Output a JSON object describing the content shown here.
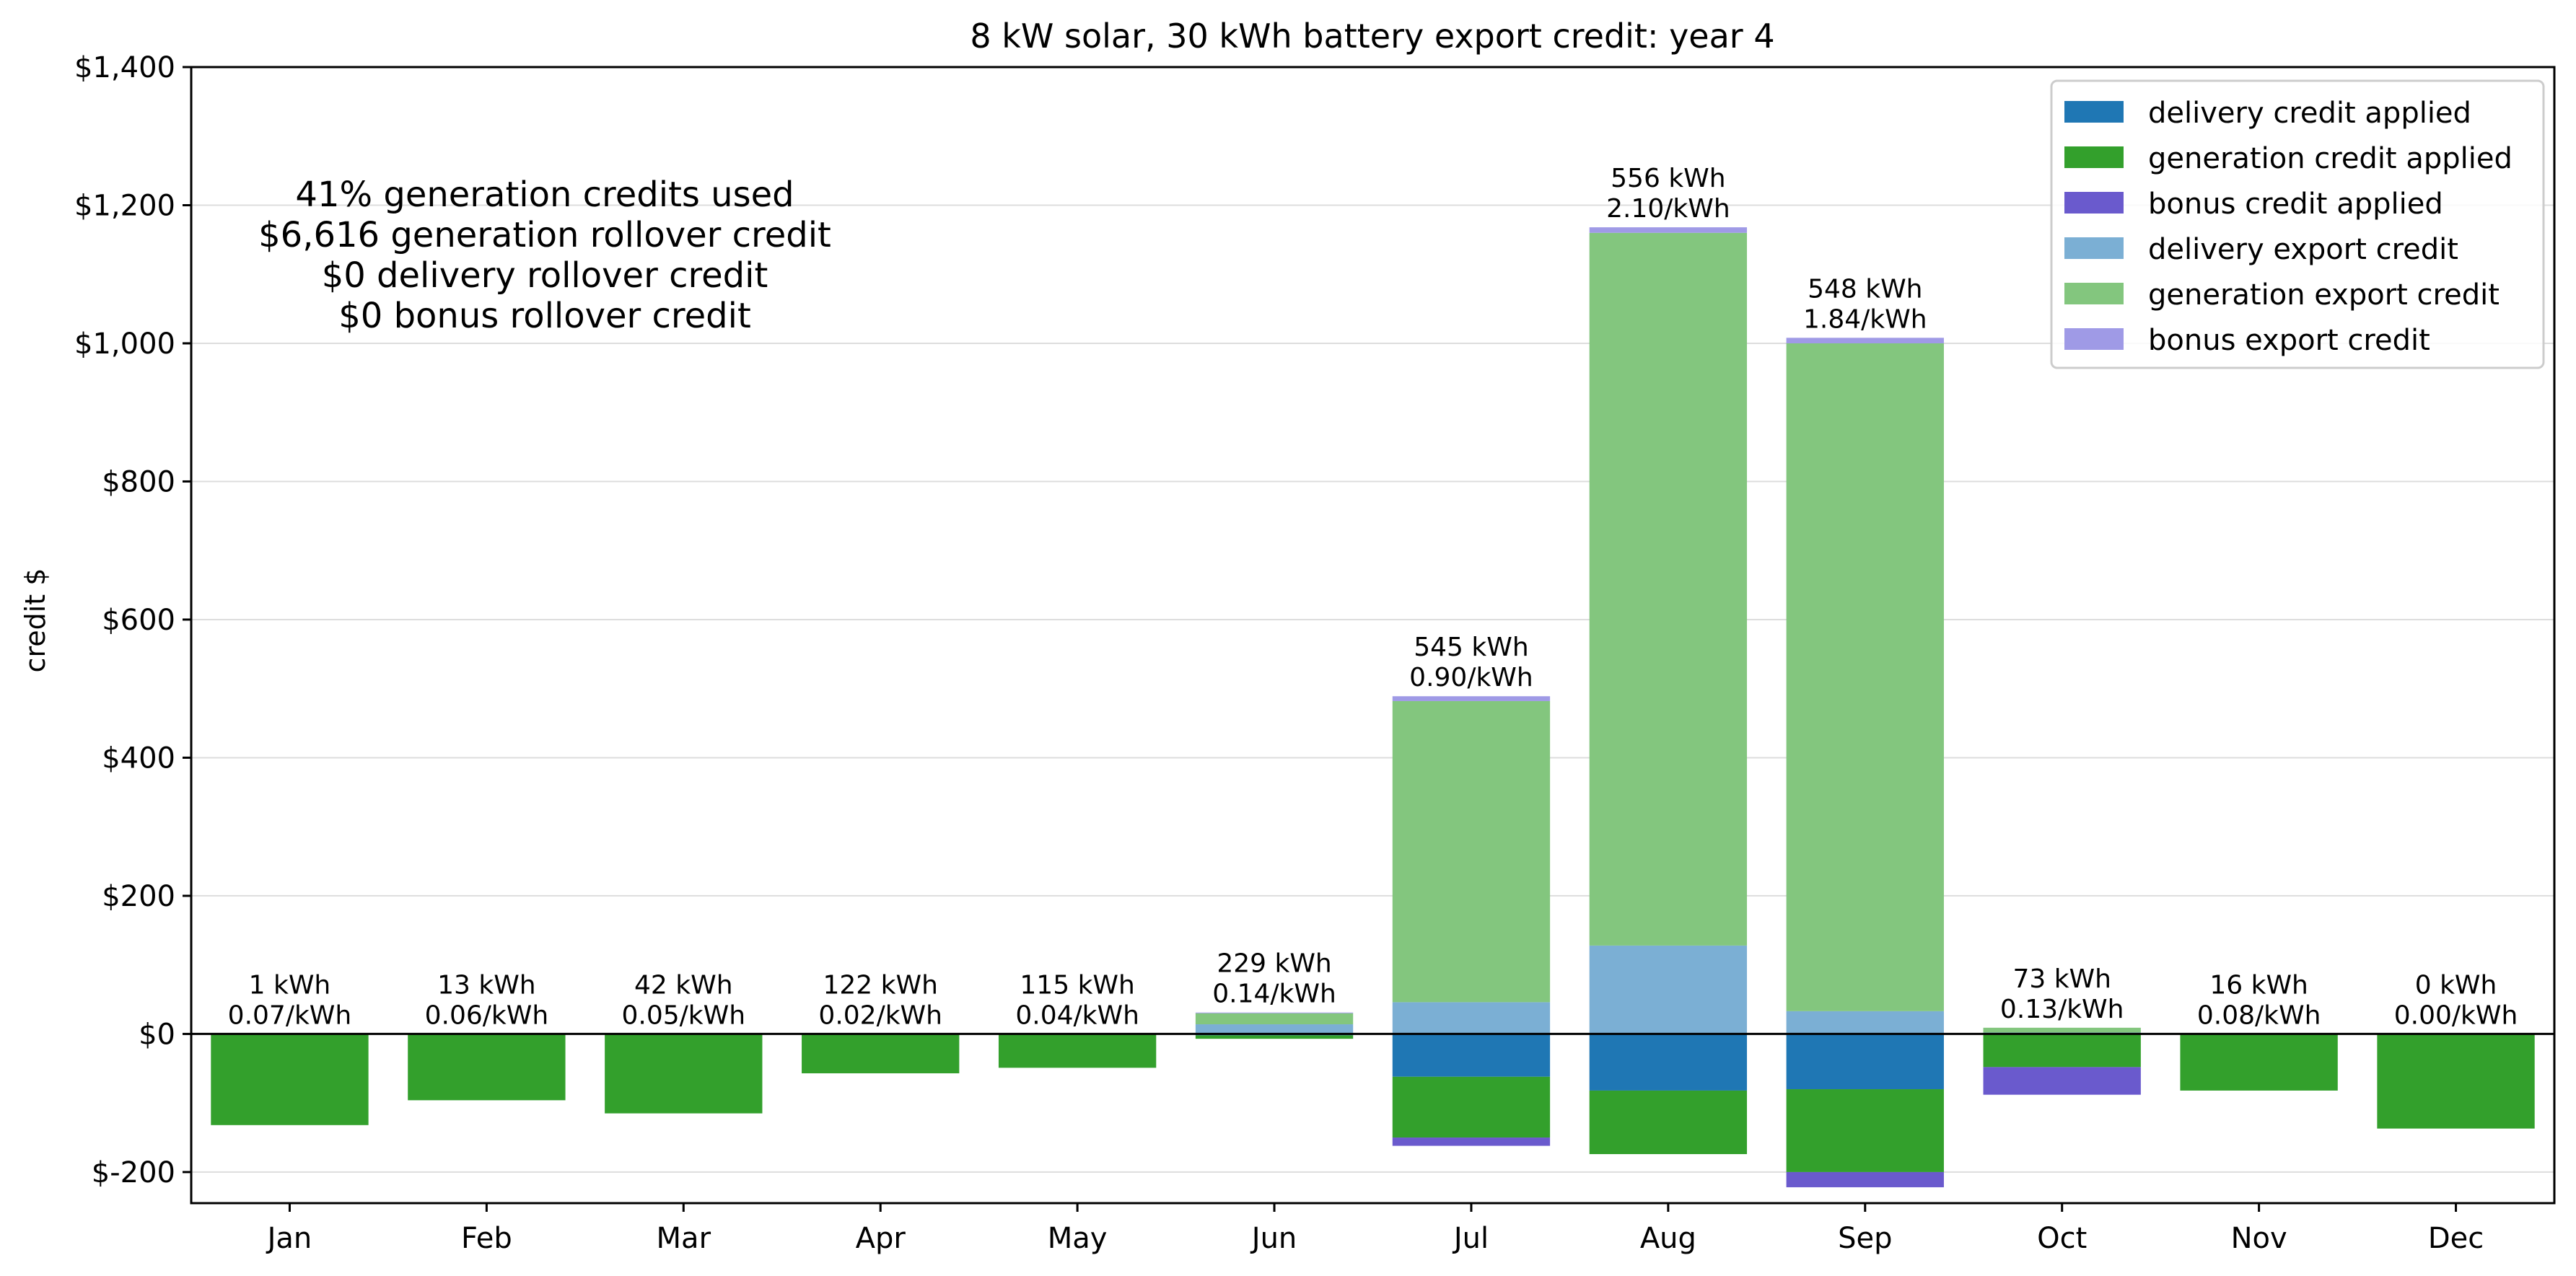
{
  "chart_data": {
    "type": "bar",
    "stacked": true,
    "title": "8 kW solar, 30 kWh battery export credit: year 4",
    "xlabel": "",
    "ylabel": "credit $",
    "ylim": [
      -245,
      1400
    ],
    "yticks": [
      -200,
      0,
      200,
      400,
      600,
      800,
      1000,
      1200,
      1400
    ],
    "ytick_labels": [
      "$-200",
      "$0",
      "$200",
      "$400",
      "$600",
      "$800",
      "$1,000",
      "$1,200",
      "$1,400"
    ],
    "grid": "horizontal",
    "legend_position": "top-right",
    "categories": [
      "Jan",
      "Feb",
      "Mar",
      "Apr",
      "May",
      "Jun",
      "Jul",
      "Aug",
      "Sep",
      "Oct",
      "Nov",
      "Dec"
    ],
    "series": [
      {
        "name": "delivery credit applied",
        "color": "#1f77b4",
        "values": [
          0,
          0,
          0,
          -1,
          -1,
          -2,
          -62,
          -82,
          -80,
          0,
          0,
          0
        ]
      },
      {
        "name": "generation credit applied",
        "color": "#33a02c",
        "values": [
          -132,
          -96,
          -115,
          -56,
          -48,
          -5,
          -88,
          -92,
          -120,
          -48,
          -82,
          -137
        ]
      },
      {
        "name": "bonus credit applied",
        "color": "#6a5acd",
        "values": [
          0,
          0,
          0,
          0,
          0,
          0,
          -12,
          0,
          -22,
          -40,
          0,
          0
        ]
      },
      {
        "name": "delivery export credit",
        "color": "#7bafd4",
        "values": [
          0,
          0,
          0,
          0,
          0,
          14,
          46,
          128,
          33,
          2,
          0,
          0
        ]
      },
      {
        "name": "generation export credit",
        "color": "#83c67e",
        "values": [
          0,
          0,
          0,
          0,
          0,
          16,
          436,
          1032,
          967,
          7,
          0,
          0
        ]
      },
      {
        "name": "bonus export credit",
        "color": "#9f9ae6",
        "values": [
          0,
          0,
          0,
          0,
          0,
          1,
          7,
          8,
          8,
          0,
          0,
          0
        ]
      }
    ],
    "bar_labels": [
      [
        "1 kWh",
        "0.07/kWh"
      ],
      [
        "13 kWh",
        "0.06/kWh"
      ],
      [
        "42 kWh",
        "0.05/kWh"
      ],
      [
        "122 kWh",
        "0.02/kWh"
      ],
      [
        "115 kWh",
        "0.04/kWh"
      ],
      [
        "229 kWh",
        "0.14/kWh"
      ],
      [
        "545 kWh",
        "0.90/kWh"
      ],
      [
        "556 kWh",
        "2.10/kWh"
      ],
      [
        "548 kWh",
        "1.84/kWh"
      ],
      [
        "73 kWh",
        "0.13/kWh"
      ],
      [
        "16 kWh",
        "0.08/kWh"
      ],
      [
        "0 kWh",
        "0.00/kWh"
      ]
    ],
    "annotation": [
      "41% generation credits used",
      "$6,616 generation rollover credit",
      "$0 delivery rollover credit",
      "$0 bonus rollover credit"
    ]
  }
}
